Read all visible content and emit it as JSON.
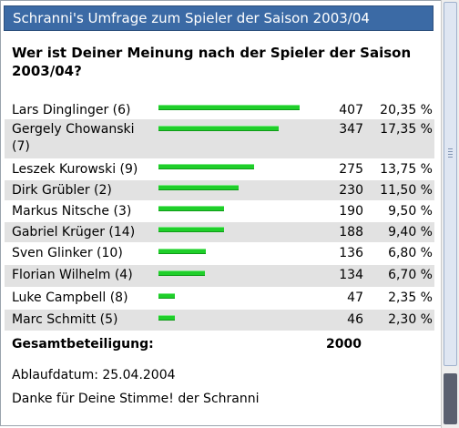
{
  "poll": {
    "title": "Schranni's Umfrage zum Spieler der Saison 2003/04",
    "question": "Wer ist Deiner Meinung nach der Spieler der Saison 2003/04?",
    "rows": [
      {
        "name": "Lars Dinglinger (6)",
        "votes": "407",
        "percent": "20,35 %",
        "share": 20.35
      },
      {
        "name": "Gergely Chowanski (7)",
        "votes": "347",
        "percent": "17,35 %",
        "share": 17.35
      },
      {
        "name": "Leszek Kurowski (9)",
        "votes": "275",
        "percent": "13,75 %",
        "share": 13.75
      },
      {
        "name": "Dirk Grübler (2)",
        "votes": "230",
        "percent": "11,50 %",
        "share": 11.5
      },
      {
        "name": "Markus Nitsche (3)",
        "votes": "190",
        "percent": "9,50 %",
        "share": 9.5
      },
      {
        "name": "Gabriel Krüger (14)",
        "votes": "188",
        "percent": "9,40 %",
        "share": 9.4
      },
      {
        "name": "Sven Glinker (10)",
        "votes": "136",
        "percent": "6,80 %",
        "share": 6.8
      },
      {
        "name": "Florian Wilhelm (4)",
        "votes": "134",
        "percent": "6,70 %",
        "share": 6.7
      },
      {
        "name": "Luke Campbell (8)",
        "votes": "47",
        "percent": "2,35 %",
        "share": 2.35
      },
      {
        "name": "Marc Schmitt (5)",
        "votes": "46",
        "percent": "2,30 %",
        "share": 2.3
      }
    ],
    "total_label": "Gesamtbeteiligung:",
    "total_value": "2000",
    "expiry": "Ablaufdatum: 25.04.2004",
    "thanks": "Danke für Deine Stimme! der Schranni"
  },
  "colors": {
    "title_bg": "#3b6aa5",
    "bar": "#1fcf2a",
    "row_shade": "#e2e2e2"
  }
}
